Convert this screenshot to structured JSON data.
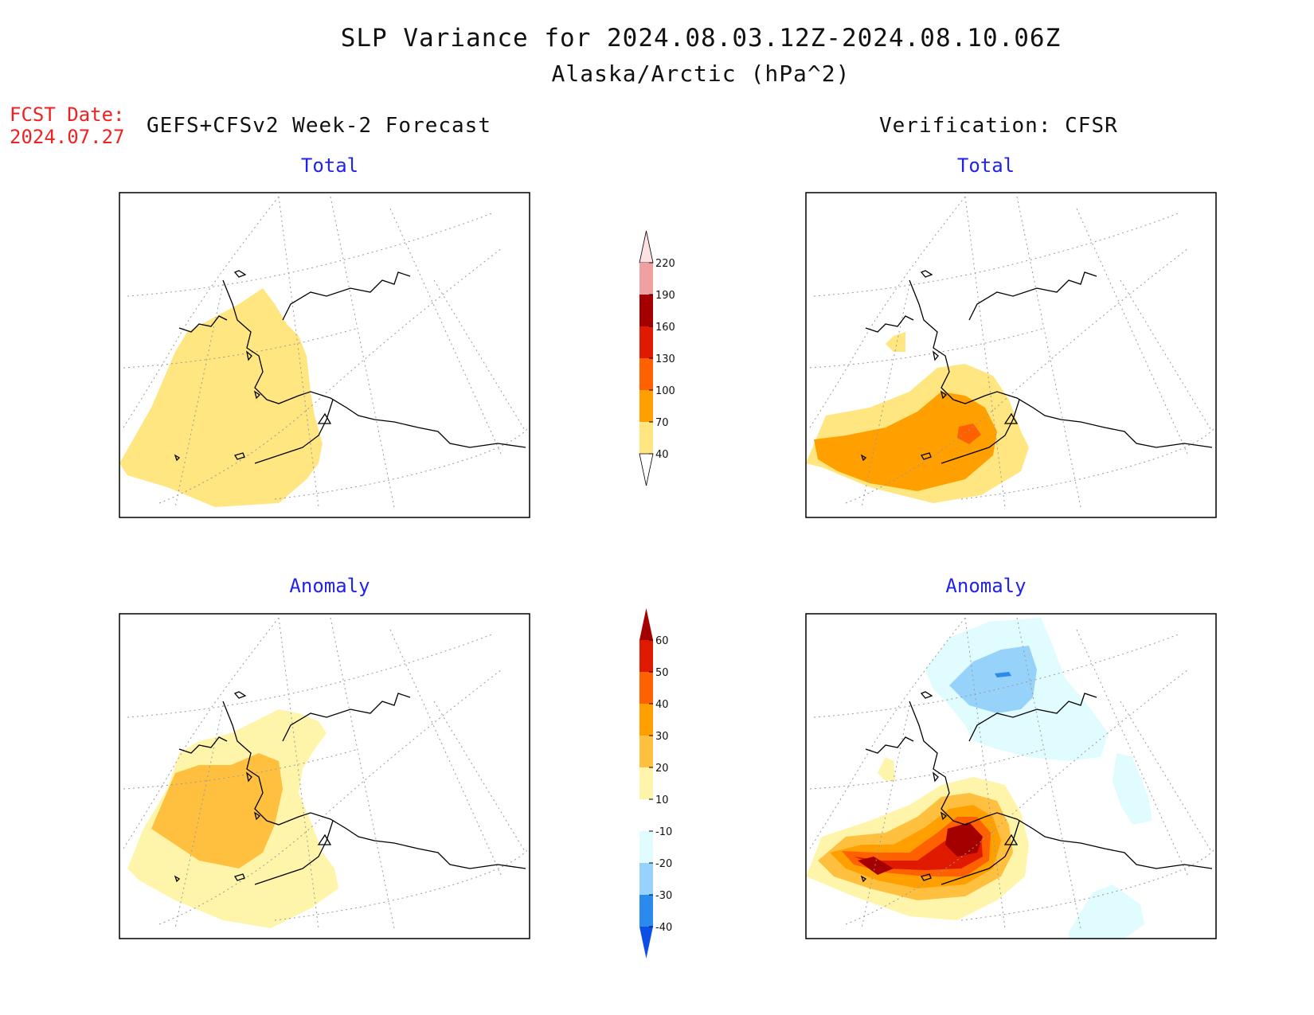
{
  "header": {
    "title": "SLP Variance for 2024.08.03.12Z-2024.08.10.06Z",
    "subtitle": "Alaska/Arctic (hPa^2)",
    "fcst_date_label": "FCST Date:",
    "fcst_date_value": "2024.07.27",
    "left_column": "GEFS+CFSv2 Week-2 Forecast",
    "right_column": "Verification: CFSR"
  },
  "panels": [
    {
      "id": "forecast-total",
      "title": "Total"
    },
    {
      "id": "verification-total",
      "title": "Total"
    },
    {
      "id": "forecast-anomaly",
      "title": "Anomaly"
    },
    {
      "id": "verification-anomaly",
      "title": "Anomaly"
    }
  ],
  "colorbars": {
    "total": {
      "levels": [
        "40",
        "70",
        "100",
        "130",
        "160",
        "190",
        "220"
      ],
      "colors": [
        "#ffffff",
        "#ffe680",
        "#ffa000",
        "#ff6000",
        "#e01a00",
        "#a50000",
        "#f0a0a0",
        "#ffe0e0"
      ]
    },
    "anomaly": {
      "levels": [
        "-40",
        "-30",
        "-20",
        "-10",
        "10",
        "20",
        "30",
        "40",
        "50",
        "60"
      ],
      "colors": [
        "#0a50e6",
        "#2a8aee",
        "#96d2fa",
        "#e0fcff",
        "#ffffff",
        "#fff5aa",
        "#ffc040",
        "#ffa000",
        "#ff6000",
        "#e01a00",
        "#a50000"
      ]
    }
  }
}
